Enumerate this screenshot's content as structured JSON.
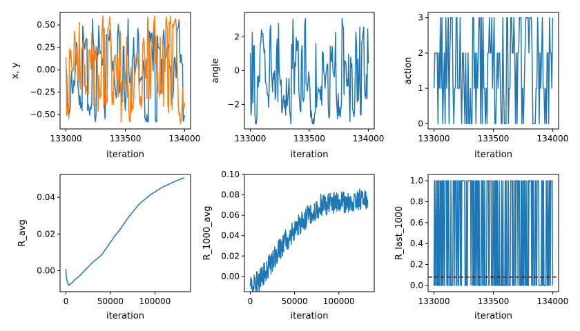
{
  "colors": {
    "blue": "#1f77b4",
    "orange": "#ff7f0e",
    "refline": "#8b0000"
  },
  "chart_data": [
    {
      "id": "xy",
      "type": "line",
      "xlabel": "iteration",
      "ylabel": "x, y",
      "xlim": [
        132950,
        134050
      ],
      "ylim": [
        -0.66,
        0.64
      ],
      "xticks": [
        133000,
        133500,
        134000
      ],
      "yticks": [
        -0.5,
        -0.25,
        0.0,
        0.25,
        0.5
      ],
      "ytick_labels": [
        "−0.50",
        "−0.25",
        "0.00",
        "0.25",
        "0.50"
      ],
      "series": [
        {
          "x_start": 133000,
          "x_end": 134000,
          "color": "#1f77b4",
          "kind": "wave",
          "ymin": -0.58,
          "ymax": 0.57,
          "n": 170,
          "seed": 3
        },
        {
          "x_start": 133000,
          "x_end": 134000,
          "color": "#ff7f0e",
          "kind": "wave",
          "ymin": -0.6,
          "ymax": 0.6,
          "n": 170,
          "seed": 11
        }
      ]
    },
    {
      "id": "angle",
      "type": "line",
      "xlabel": "iteration",
      "ylabel": "angle",
      "xlim": [
        132950,
        134050
      ],
      "ylim": [
        -3.45,
        3.45
      ],
      "xticks": [
        133000,
        133500,
        134000
      ],
      "yticks": [
        -2,
        0,
        2
      ],
      "ytick_labels": [
        "−2",
        "0",
        "2"
      ],
      "series": [
        {
          "x_start": 133000,
          "x_end": 134000,
          "color": "#1f77b4",
          "kind": "wave",
          "ymin": -3.14,
          "ymax": 3.14,
          "n": 180,
          "seed": 7
        }
      ]
    },
    {
      "id": "action",
      "type": "line",
      "xlabel": "iteration",
      "ylabel": "action",
      "xlim": [
        132950,
        134050
      ],
      "ylim": [
        -0.15,
        3.15
      ],
      "xticks": [
        133000,
        133500,
        134000
      ],
      "yticks": [
        0,
        1,
        2,
        3
      ],
      "ytick_labels": [
        "0",
        "1",
        "2",
        "3"
      ],
      "series": [
        {
          "x_start": 133000,
          "x_end": 134000,
          "color": "#1f77b4",
          "kind": "discrete",
          "levels": [
            0,
            1,
            2,
            3
          ],
          "n": 150,
          "seed": 5
        }
      ]
    },
    {
      "id": "ravg",
      "type": "line",
      "xlabel": "iteration",
      "ylabel": "R_avg",
      "xlim": [
        -6600,
        140000
      ],
      "ylim": [
        -0.0115,
        0.0525
      ],
      "xticks": [
        0,
        50000,
        100000
      ],
      "yticks": [
        0.0,
        0.02,
        0.04
      ],
      "ytick_labels": [
        "0.00",
        "0.02",
        "0.04"
      ],
      "series": [
        {
          "color": "#1f77b4",
          "kind": "points",
          "points": [
            [
              0,
              0.001
            ],
            [
              500,
              -0.004
            ],
            [
              1500,
              -0.006
            ],
            [
              3000,
              -0.008
            ],
            [
              6000,
              -0.007
            ],
            [
              10000,
              -0.005
            ],
            [
              15000,
              -0.003
            ],
            [
              20000,
              -0.0005
            ],
            [
              25000,
              0.002
            ],
            [
              30000,
              0.0045
            ],
            [
              35000,
              0.0065
            ],
            [
              40000,
              0.0085
            ],
            [
              45000,
              0.012
            ],
            [
              50000,
              0.0155
            ],
            [
              55000,
              0.019
            ],
            [
              60000,
              0.022
            ],
            [
              65000,
              0.0255
            ],
            [
              70000,
              0.029
            ],
            [
              75000,
              0.032
            ],
            [
              80000,
              0.035
            ],
            [
              85000,
              0.0375
            ],
            [
              90000,
              0.0395
            ],
            [
              95000,
              0.0415
            ],
            [
              100000,
              0.043
            ],
            [
              105000,
              0.0445
            ],
            [
              110000,
              0.046
            ],
            [
              115000,
              0.047
            ],
            [
              120000,
              0.0482
            ],
            [
              125000,
              0.0492
            ],
            [
              130000,
              0.0502
            ],
            [
              133000,
              0.0507
            ]
          ]
        }
      ]
    },
    {
      "id": "r1000",
      "type": "line",
      "xlabel": "iteration",
      "ylabel": "R_1000_avg",
      "xlim": [
        -6600,
        140000
      ],
      "ylim": [
        -0.015,
        0.1
      ],
      "xticks": [
        0,
        50000,
        100000
      ],
      "yticks": [
        0.0,
        0.02,
        0.04,
        0.06,
        0.08,
        0.1
      ],
      "ytick_labels": [
        "0.00",
        "0.02",
        "0.04",
        "0.06",
        "0.08",
        "0.10"
      ],
      "series": [
        {
          "color": "#1f77b4",
          "kind": "noisy",
          "trend": [
            [
              0,
              -0.009
            ],
            [
              10000,
              -0.005
            ],
            [
              20000,
              0.008
            ],
            [
              30000,
              0.022
            ],
            [
              40000,
              0.035
            ],
            [
              50000,
              0.045
            ],
            [
              60000,
              0.055
            ],
            [
              70000,
              0.063
            ],
            [
              80000,
              0.07
            ],
            [
              100000,
              0.072
            ],
            [
              120000,
              0.074
            ],
            [
              133000,
              0.078
            ]
          ],
          "noise": 0.011,
          "n": 420,
          "seed": 9
        }
      ]
    },
    {
      "id": "rlast",
      "type": "line",
      "xlabel": "iteration",
      "ylabel": "R_last_1000",
      "xlim": [
        132950,
        134050
      ],
      "ylim": [
        -0.06,
        1.06
      ],
      "xticks": [
        133000,
        133500,
        134000
      ],
      "yticks": [
        0.0,
        0.2,
        0.4,
        0.6,
        0.8,
        1.0
      ],
      "ytick_labels": [
        "0.0",
        "0.2",
        "0.4",
        "0.6",
        "0.8",
        "1.0"
      ],
      "hline": {
        "y": 0.08,
        "color": "#8b0000",
        "style": "dashed"
      },
      "series": [
        {
          "x_start": 133000,
          "x_end": 134000,
          "color": "#1f77b4",
          "kind": "binary",
          "n": 260,
          "seed": 13
        }
      ]
    }
  ]
}
